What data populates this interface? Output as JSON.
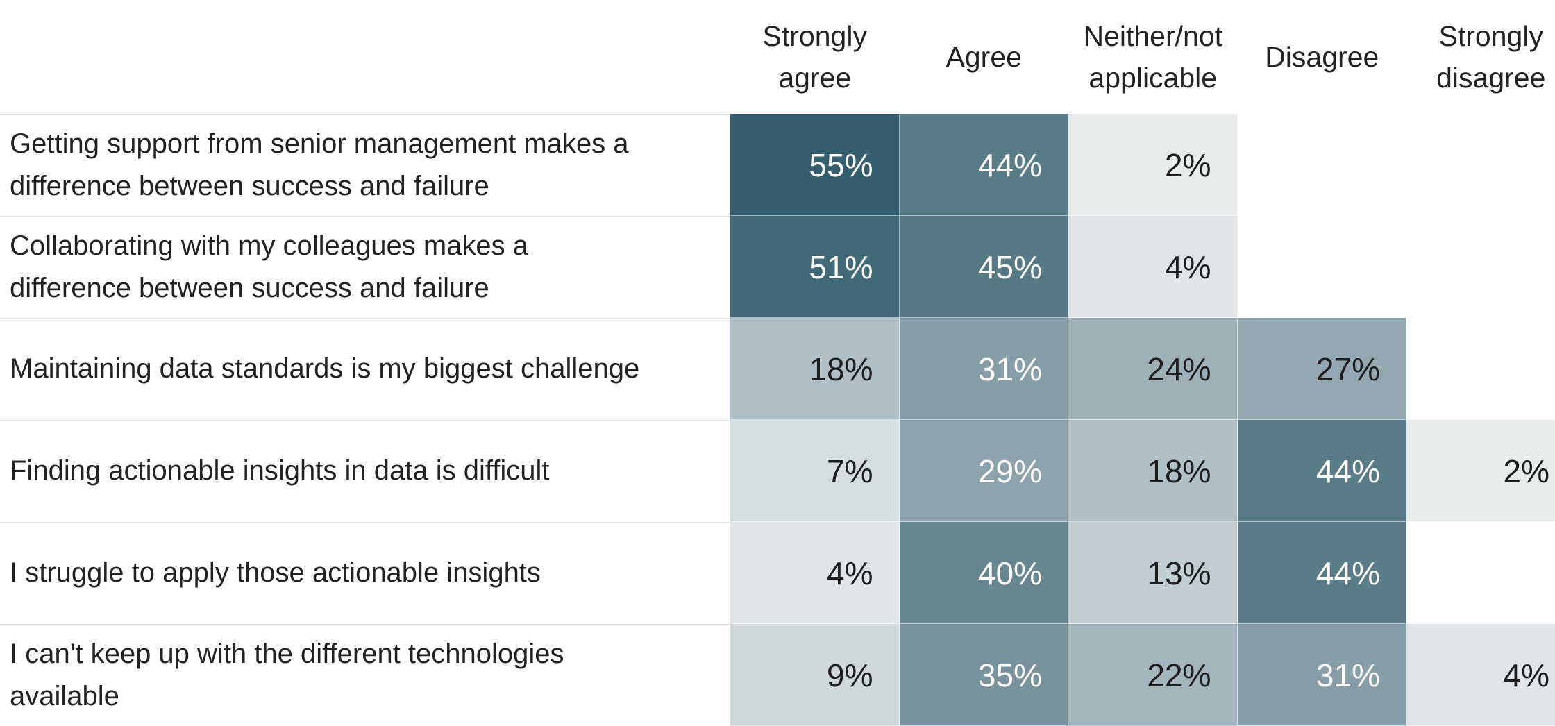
{
  "chart_data": {
    "type": "heatmap",
    "columns": [
      {
        "lines": [
          "Strongly",
          "agree"
        ]
      },
      {
        "lines": [
          "Agree"
        ]
      },
      {
        "lines": [
          "Neither/not",
          "applicable"
        ]
      },
      {
        "lines": [
          "Disagree"
        ]
      },
      {
        "lines": [
          "Strongly",
          "disagree"
        ]
      }
    ],
    "rows": [
      {
        "lines": [
          "Getting support from senior management makes a",
          "difference between success and failure"
        ],
        "values": [
          55,
          44,
          2,
          null,
          null
        ]
      },
      {
        "lines": [
          "Collaborating with my colleagues makes a",
          "difference between success and failure"
        ],
        "values": [
          51,
          45,
          4,
          null,
          null
        ]
      },
      {
        "lines": [
          "Maintaining data standards is my biggest challenge"
        ],
        "values": [
          18,
          31,
          24,
          27,
          null
        ]
      },
      {
        "lines": [
          "Finding actionable insights in data is difficult"
        ],
        "values": [
          7,
          29,
          18,
          44,
          2
        ]
      },
      {
        "lines": [
          "I struggle to apply those actionable insights"
        ],
        "values": [
          4,
          40,
          13,
          44,
          null
        ]
      },
      {
        "lines": [
          "I can't keep up with the different technologies",
          "available"
        ],
        "values": [
          9,
          35,
          22,
          31,
          4
        ]
      }
    ],
    "value_suffix": "%",
    "color_scale": {
      "low": "#eef0f1",
      "high": "#355e6e",
      "max_value": 55
    }
  }
}
